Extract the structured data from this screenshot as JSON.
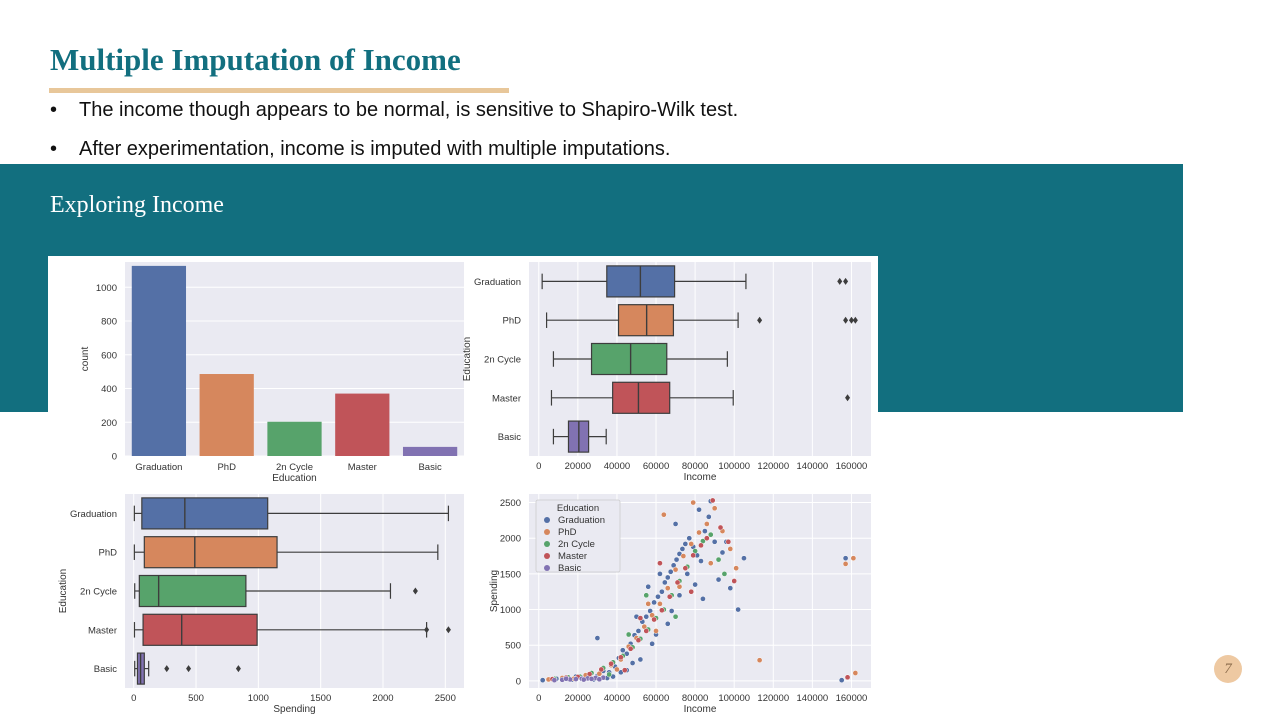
{
  "slide": {
    "title": "Multiple Imputation of Income",
    "bullets": [
      "The income though appears to be normal, is sensitive to Shapiro-Wilk test.",
      "After experimentation, income is imputed with multiple imputations."
    ],
    "section_title": "Exploring Income",
    "page_number": "7"
  },
  "colors": {
    "teal": "#126f7f",
    "accent_rule": "#e8c79a",
    "plot_bg": "#eaeaf2",
    "series": [
      "#5470a6",
      "#d6875d",
      "#57a36b",
      "#c05459",
      "#8172b2"
    ]
  },
  "chart_data": [
    {
      "type": "bar",
      "categories": [
        "Graduation",
        "PhD",
        "2n Cycle",
        "Master",
        "Basic"
      ],
      "values": [
        1127,
        486,
        203,
        370,
        54
      ],
      "xlabel": "Education",
      "ylabel": "count",
      "ylim": [
        0,
        1150
      ],
      "yticks": [
        0,
        200,
        400,
        600,
        800,
        1000
      ],
      "grid": true
    },
    {
      "type": "box",
      "orientation": "horizontal",
      "categories": [
        "Graduation",
        "PhD",
        "2n Cycle",
        "Master",
        "Basic"
      ],
      "boxes": [
        {
          "whisker_low": 1730,
          "q1": 34800,
          "median": 52000,
          "q3": 69500,
          "whisker_high": 106000,
          "outliers": [
            154000,
            157000
          ]
        },
        {
          "whisker_low": 4000,
          "q1": 40800,
          "median": 55200,
          "q3": 68900,
          "whisker_high": 102000,
          "outliers": [
            113000,
            157000,
            160000,
            162000
          ]
        },
        {
          "whisker_low": 7500,
          "q1": 27000,
          "median": 47000,
          "q3": 65500,
          "whisker_high": 96500,
          "outliers": []
        },
        {
          "whisker_low": 6500,
          "q1": 37800,
          "median": 51000,
          "q3": 67000,
          "whisker_high": 99500,
          "outliers": [
            158000
          ]
        },
        {
          "whisker_low": 7500,
          "q1": 15200,
          "median": 20500,
          "q3": 25500,
          "whisker_high": 34500,
          "outliers": []
        }
      ],
      "xlabel": "Income",
      "ylabel": "Education",
      "xlim": [
        -5000,
        170000
      ],
      "xticks": [
        0,
        20000,
        40000,
        60000,
        80000,
        100000,
        120000,
        140000,
        160000
      ],
      "grid": true
    },
    {
      "type": "box",
      "orientation": "horizontal",
      "categories": [
        "Graduation",
        "PhD",
        "2n Cycle",
        "Master",
        "Basic"
      ],
      "boxes": [
        {
          "whisker_low": 5,
          "q1": 65,
          "median": 410,
          "q3": 1075,
          "whisker_high": 2525,
          "outliers": []
        },
        {
          "whisker_low": 5,
          "q1": 85,
          "median": 490,
          "q3": 1150,
          "whisker_high": 2440,
          "outliers": []
        },
        {
          "whisker_low": 8,
          "q1": 45,
          "median": 200,
          "q3": 900,
          "whisker_high": 2060,
          "outliers": [
            2260
          ]
        },
        {
          "whisker_low": 6,
          "q1": 75,
          "median": 385,
          "q3": 990,
          "whisker_high": 2350,
          "outliers": [
            2350,
            2525
          ]
        },
        {
          "whisker_low": 8,
          "q1": 30,
          "median": 55,
          "q3": 85,
          "whisker_high": 120,
          "outliers": [
            265,
            440,
            840
          ]
        }
      ],
      "xlabel": "Spending",
      "ylabel": "Education",
      "xlim": [
        -70,
        2650
      ],
      "xticks": [
        0,
        500,
        1000,
        1500,
        2000,
        2500
      ],
      "grid": true
    },
    {
      "type": "scatter",
      "xlabel": "Income",
      "ylabel": "Spending",
      "xlim": [
        -5000,
        170000
      ],
      "ylim": [
        -100,
        2620
      ],
      "xticks": [
        0,
        20000,
        40000,
        60000,
        80000,
        100000,
        120000,
        140000,
        160000
      ],
      "yticks": [
        0,
        500,
        1000,
        1500,
        2000,
        2500
      ],
      "grid": true,
      "legend": {
        "title": "Education",
        "placement": "top-left"
      },
      "series": [
        {
          "name": "Graduation",
          "points": [
            [
              2000,
              10
            ],
            [
              9000,
              30
            ],
            [
              14000,
              25
            ],
            [
              19000,
              60
            ],
            [
              23000,
              45
            ],
            [
              26000,
              90
            ],
            [
              30000,
              70
            ],
            [
              33000,
              140
            ],
            [
              36000,
              120
            ],
            [
              39000,
              200
            ],
            [
              41000,
              320
            ],
            [
              43000,
              430
            ],
            [
              45000,
              380
            ],
            [
              47000,
              520
            ],
            [
              49000,
              640
            ],
            [
              51000,
              700
            ],
            [
              53000,
              830
            ],
            [
              55000,
              900
            ],
            [
              57000,
              980
            ],
            [
              59000,
              1100
            ],
            [
              61000,
              1180
            ],
            [
              63000,
              1250
            ],
            [
              64500,
              1380
            ],
            [
              66000,
              1450
            ],
            [
              67500,
              1530
            ],
            [
              69000,
              1620
            ],
            [
              70500,
              1700
            ],
            [
              72000,
              1780
            ],
            [
              73500,
              1850
            ],
            [
              75000,
              1920
            ],
            [
              77000,
              2000
            ],
            [
              79000,
              1880
            ],
            [
              81000,
              1760
            ],
            [
              83000,
              1680
            ],
            [
              85000,
              2100
            ],
            [
              87000,
              2300
            ],
            [
              88000,
              2520
            ],
            [
              90000,
              1950
            ],
            [
              92000,
              1420
            ],
            [
              94000,
              1800
            ],
            [
              96000,
              1950
            ],
            [
              98000,
              1300
            ],
            [
              102000,
              1000
            ],
            [
              105000,
              1720
            ],
            [
              157000,
              1720
            ],
            [
              155000,
              10
            ],
            [
              38000,
              60
            ],
            [
              45000,
              150
            ],
            [
              52000,
              300
            ],
            [
              60000,
              650
            ],
            [
              68000,
              980
            ],
            [
              62000,
              1500
            ],
            [
              56000,
              1320
            ],
            [
              76000,
              1500
            ],
            [
              80000,
              1350
            ],
            [
              84000,
              1150
            ],
            [
              72000,
              1200
            ],
            [
              66000,
              800
            ],
            [
              58000,
              520
            ],
            [
              48000,
              250
            ],
            [
              42000,
              120
            ],
            [
              35000,
              40
            ],
            [
              28000,
              20
            ],
            [
              17000,
              15
            ],
            [
              70000,
              2200
            ],
            [
              82000,
              2400
            ],
            [
              30000,
              600
            ],
            [
              50000,
              900
            ]
          ]
        },
        {
          "name": "PhD",
          "points": [
            [
              5000,
              20
            ],
            [
              12000,
              40
            ],
            [
              18000,
              30
            ],
            [
              24000,
              80
            ],
            [
              31000,
              100
            ],
            [
              37000,
              220
            ],
            [
              42000,
              300
            ],
            [
              46000,
              480
            ],
            [
              50000,
              600
            ],
            [
              54000,
              760
            ],
            [
              58000,
              920
            ],
            [
              62000,
              1080
            ],
            [
              66000,
              1300
            ],
            [
              70000,
              1560
            ],
            [
              74000,
              1750
            ],
            [
              78000,
              1920
            ],
            [
              82000,
              2080
            ],
            [
              86000,
              2200
            ],
            [
              90000,
              2420
            ],
            [
              94000,
              2100
            ],
            [
              98000,
              1850
            ],
            [
              101000,
              1580
            ],
            [
              113000,
              290
            ],
            [
              157000,
              1640
            ],
            [
              161000,
              1720
            ],
            [
              162000,
              110
            ],
            [
              79000,
              2500
            ],
            [
              64000,
              2330
            ],
            [
              56000,
              1080
            ],
            [
              72000,
              1320
            ],
            [
              88000,
              1650
            ],
            [
              40000,
              160
            ],
            [
              60000,
              700
            ]
          ]
        },
        {
          "name": "2n Cycle",
          "points": [
            [
              8000,
              30
            ],
            [
              15000,
              50
            ],
            [
              21000,
              60
            ],
            [
              27000,
              110
            ],
            [
              33000,
              180
            ],
            [
              38000,
              260
            ],
            [
              43000,
              350
            ],
            [
              48000,
              470
            ],
            [
              52000,
              590
            ],
            [
              56000,
              720
            ],
            [
              60000,
              880
            ],
            [
              64000,
              1000
            ],
            [
              68000,
              1200
            ],
            [
              72000,
              1400
            ],
            [
              76000,
              1600
            ],
            [
              80000,
              1820
            ],
            [
              84000,
              1960
            ],
            [
              88000,
              2050
            ],
            [
              92000,
              1700
            ],
            [
              95000,
              1500
            ],
            [
              46000,
              650
            ],
            [
              55000,
              1200
            ],
            [
              70000,
              900
            ],
            [
              36000,
              90
            ]
          ]
        },
        {
          "name": "Master",
          "points": [
            [
              7000,
              25
            ],
            [
              14000,
              45
            ],
            [
              20000,
              55
            ],
            [
              26000,
              95
            ],
            [
              32000,
              160
            ],
            [
              37000,
              240
            ],
            [
              42000,
              330
            ],
            [
              47000,
              450
            ],
            [
              51000,
              570
            ],
            [
              55000,
              700
            ],
            [
              59000,
              860
            ],
            [
              63000,
              990
            ],
            [
              67000,
              1180
            ],
            [
              71000,
              1380
            ],
            [
              75000,
              1580
            ],
            [
              79000,
              1760
            ],
            [
              83000,
              1900
            ],
            [
              86000,
              2000
            ],
            [
              89000,
              2530
            ],
            [
              93000,
              2150
            ],
            [
              97000,
              1950
            ],
            [
              100000,
              1400
            ],
            [
              158000,
              50
            ],
            [
              44000,
              150
            ],
            [
              62000,
              1650
            ],
            [
              78000,
              1250
            ],
            [
              52000,
              880
            ]
          ]
        },
        {
          "name": "Basic",
          "points": [
            [
              8000,
              10
            ],
            [
              12000,
              15
            ],
            [
              16000,
              20
            ],
            [
              19000,
              25
            ],
            [
              22000,
              30
            ],
            [
              25000,
              35
            ],
            [
              29000,
              40
            ],
            [
              33000,
              45
            ],
            [
              14000,
              30
            ],
            [
              23000,
              18
            ],
            [
              27000,
              28
            ],
            [
              31000,
              22
            ]
          ]
        }
      ]
    }
  ]
}
